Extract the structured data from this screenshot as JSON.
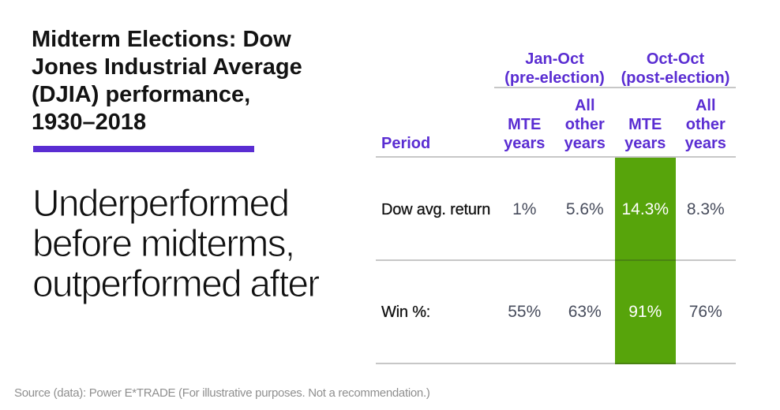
{
  "colors": {
    "accent_purple": "#5a2dd2",
    "highlight_green": "#57a40b",
    "title_black": "#131313",
    "value_slate": "#474c5c",
    "divider_gray": "#d0d0d0",
    "source_gray": "#8f8f8f",
    "highlight_text": "#ffffff",
    "background": "#ffffff"
  },
  "header": {
    "title": "Midterm Elections: Dow\nJones Industrial Average\n(DJIA) performance,\n1930–2018",
    "subtitle": "Underperformed\nbefore midterms,\noutperformed after"
  },
  "table": {
    "group_headers": {
      "pre": "Jan-Oct\n(pre-election)",
      "post": "Oct-Oct\n(post-election)"
    },
    "col_headers": {
      "period": "Period",
      "c1": "MTE\nyears",
      "c2": "All\nother\nyears",
      "c3": "MTE\nyears",
      "c4": "All\nother\nyears"
    }
  },
  "chart_data": {
    "type": "table",
    "title": "Midterm Elections: Dow Jones Industrial Average (DJIA) performance, 1930–2018",
    "subtitle": "Underperformed before midterms, outperformed after",
    "column_groups": [
      {
        "label": "Jan-Oct (pre-election)",
        "columns": [
          "MTE years",
          "All other years"
        ]
      },
      {
        "label": "Oct-Oct (post-election)",
        "columns": [
          "MTE years",
          "All other years"
        ]
      }
    ],
    "columns": [
      "Period",
      "MTE years",
      "All other years",
      "MTE years",
      "All other years"
    ],
    "rows": [
      {
        "label": "Dow avg. return",
        "values": [
          "1%",
          "5.6%",
          "14.3%",
          "8.3%"
        ]
      },
      {
        "label": "Win %:",
        "values": [
          "55%",
          "63%",
          "91%",
          "76%"
        ]
      }
    ],
    "highlighted_column": "Oct-Oct (post-election) MTE years",
    "highlight_color": "#57a40b",
    "legend": "none",
    "grid": "horizontal dividers only"
  },
  "footer": {
    "source": "Source (data): Power E*TRADE (For illustrative purposes. Not a recommendation.)"
  }
}
